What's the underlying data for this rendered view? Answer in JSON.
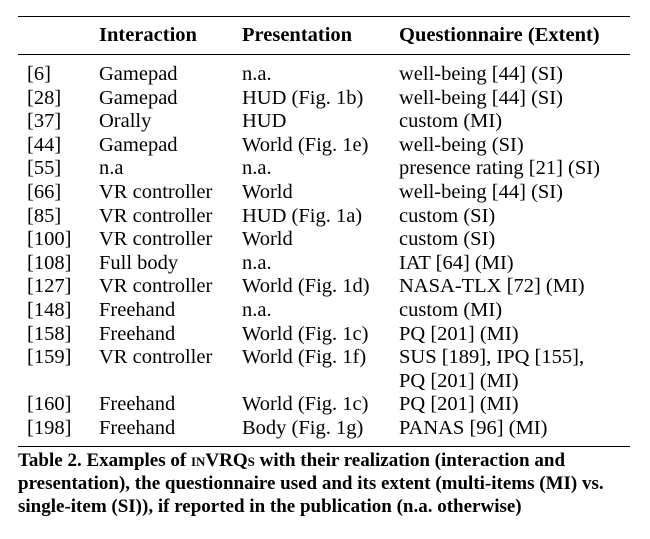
{
  "table": {
    "headers": [
      "",
      "Interaction",
      "Presentation",
      "Questionnaire (Extent)"
    ],
    "rows": [
      [
        "[6]",
        "Gamepad",
        "n.a.",
        "well-being [44] (SI)"
      ],
      [
        "[28]",
        "Gamepad",
        "HUD (Fig. 1b)",
        "well-being [44] (SI)"
      ],
      [
        "[37]",
        "Orally",
        "HUD",
        "custom (MI)"
      ],
      [
        "[44]",
        "Gamepad",
        "World (Fig. 1e)",
        "well-being (SI)"
      ],
      [
        "[55]",
        "n.a",
        "n.a.",
        "presence rating [21] (SI)"
      ],
      [
        "[66]",
        "VR controller",
        "World",
        "well-being [44] (SI)"
      ],
      [
        "[85]",
        "VR controller",
        "HUD (Fig. 1a)",
        "custom (SI)"
      ],
      [
        "[100]",
        "VR controller",
        "World",
        "custom (SI)"
      ],
      [
        "[108]",
        "Full body",
        "n.a.",
        "IAT [64] (MI)"
      ],
      [
        "[127]",
        "VR controller",
        "World (Fig. 1d)",
        "NASA-TLX [72] (MI)"
      ],
      [
        "[148]",
        "Freehand",
        "n.a.",
        "custom (MI)"
      ],
      [
        "[158]",
        "Freehand",
        "World (Fig. 1c)",
        "PQ [201] (MI)"
      ],
      [
        "[159]",
        "VR controller",
        "World (Fig. 1f)",
        "SUS [189], IPQ [155],"
      ],
      [
        "",
        "",
        "",
        "PQ [201] (MI)"
      ],
      [
        "[160]",
        "Freehand",
        "World (Fig. 1c)",
        "PQ [201] (MI)"
      ],
      [
        "[198]",
        "Freehand",
        "Body (Fig. 1g)",
        "PANAS [96] (MI)"
      ]
    ]
  },
  "caption": {
    "part1": "Table 2. Examples of ",
    "acronym": "inVRQs",
    "part2": " with their realization (interaction and presentation), the questionnaire used and its extent (multi-items (MI) vs. single-item (SI)), if reported in the publication (n.a. otherwise)"
  }
}
